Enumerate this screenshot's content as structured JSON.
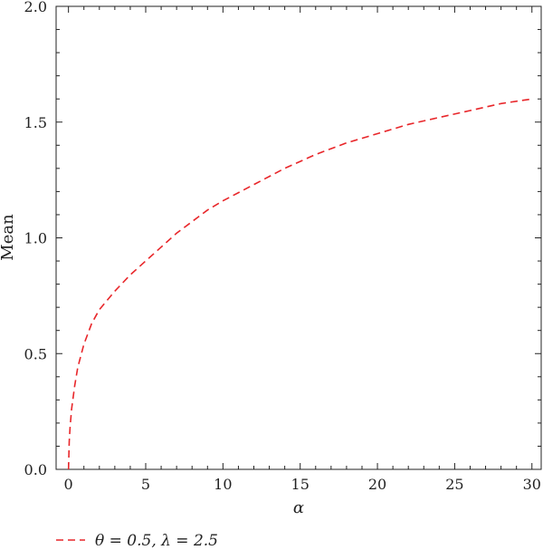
{
  "chart_data": {
    "type": "line",
    "xlabel": "α",
    "ylabel": "Mean",
    "xlim": [
      -0.8,
      30.6
    ],
    "ylim": [
      0,
      2
    ],
    "x_ticks": [
      "0",
      "5",
      "10",
      "15",
      "20",
      "25",
      "30"
    ],
    "y_ticks": [
      "0.0",
      "0.5",
      "1.0",
      "1.5",
      "2.0"
    ],
    "x_tick_values": [
      0,
      5,
      10,
      15,
      20,
      25,
      30
    ],
    "y_tick_values": [
      0,
      0.5,
      1.0,
      1.5,
      2.0
    ],
    "grid": false,
    "legend_position": "bottom-left",
    "series": [
      {
        "name": "θ = 0.5, λ = 2.5",
        "color": "#e8262a",
        "style": "dashed",
        "x": [
          0,
          0.05,
          0.1,
          0.2,
          0.4,
          0.6,
          1,
          1.5,
          2,
          3,
          4,
          5,
          6,
          7,
          8,
          9,
          10,
          12,
          14,
          16,
          18,
          20,
          22,
          24,
          26,
          28,
          30
        ],
        "y": [
          0,
          0.12,
          0.18,
          0.26,
          0.36,
          0.44,
          0.54,
          0.63,
          0.69,
          0.77,
          0.84,
          0.9,
          0.96,
          1.02,
          1.07,
          1.12,
          1.16,
          1.23,
          1.3,
          1.36,
          1.41,
          1.45,
          1.49,
          1.52,
          1.55,
          1.58,
          1.6
        ]
      }
    ]
  }
}
